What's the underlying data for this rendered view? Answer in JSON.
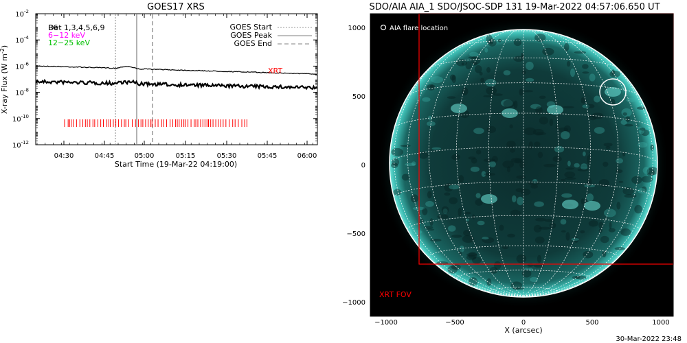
{
  "left": {
    "title": "GOES17 XRS",
    "ylabel_main": "X-ray Flux (W m",
    "ylabel_exp": "-2",
    "ylabel_close": ")",
    "xlabel": "Start Time (19-Mar-22 04:19:00)",
    "y_ticks": [
      {
        "exp": -2,
        "base": "10",
        "sup": "-2"
      },
      {
        "exp": -4,
        "base": "10",
        "sup": "-4"
      },
      {
        "exp": -6,
        "base": "10",
        "sup": "-6"
      },
      {
        "exp": -8,
        "base": "10",
        "sup": "-8"
      },
      {
        "exp": -10,
        "base": "10",
        "sup": "-10"
      },
      {
        "exp": -12,
        "base": "10",
        "sup": "-12"
      }
    ],
    "x_ticks": [
      "04:30",
      "04:45",
      "05:00",
      "05:15",
      "05:30",
      "05:45",
      "06:00"
    ],
    "legend_left": [
      {
        "text": "Det 1,3,4,5,6,9",
        "overlap": "B6",
        "color": "#000000"
      },
      {
        "text": "6−12 keV",
        "color": "#ff00ff"
      },
      {
        "text": "12−25 keV",
        "color": "#00c000"
      }
    ],
    "legend_right": [
      {
        "text": "GOES Start",
        "style": "dotted"
      },
      {
        "text": "GOES Peak",
        "style": "solid"
      },
      {
        "text": "GOES End",
        "style": "dashed"
      }
    ],
    "xrt_label": "XRT",
    "colors": {
      "xrt": "#ff0000",
      "vline": "#999999",
      "axis": "#000000"
    }
  },
  "right": {
    "title": "SDO/AIA AIA_1 SDO/JSOC-SDP 131 19-Mar-2022 04:57:06.650 UT",
    "flare_legend": "AIA flare location",
    "xrt_fov_label": "XRT FOV",
    "xlabel": "X (arcsec)",
    "x_ticks": [
      "−1000",
      "−500",
      "0",
      "500",
      "1000"
    ],
    "y_ticks": [
      "1000",
      "500",
      "0",
      "−500",
      "−1000"
    ],
    "colors": {
      "sun": "#1fa8a0",
      "fov": "#ff0000"
    }
  },
  "footer_timestamp": "30-Mar-2022 23:48"
}
